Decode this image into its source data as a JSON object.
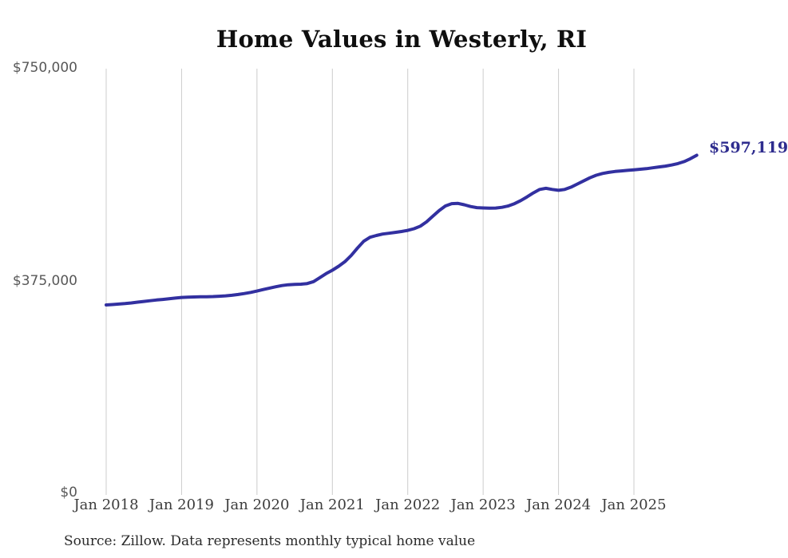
{
  "chart_data": {
    "type": "line",
    "title": "Home Values in Westerly, RI",
    "series_name": "Monthly typical home value",
    "frequency": "monthly",
    "x_start": "Jan 2018",
    "x_end": "Nov 2025",
    "values": [
      334000,
      334700,
      335500,
      336400,
      337500,
      338800,
      340100,
      341400,
      342600,
      343700,
      344800,
      346000,
      347200,
      347700,
      348000,
      348200,
      348400,
      348700,
      349200,
      350000,
      351000,
      352300,
      354000,
      356000,
      358400,
      361000,
      363600,
      366000,
      368000,
      369500,
      370200,
      370500,
      371500,
      375000,
      382000,
      389000,
      395000,
      402000,
      410000,
      421000,
      434000,
      446000,
      453000,
      456000,
      458500,
      460000,
      461500,
      463000,
      465000,
      468000,
      472500,
      480000,
      490000,
      500000,
      508000,
      512000,
      512500,
      510000,
      507000,
      505000,
      504500,
      504000,
      504300,
      505500,
      508000,
      512000,
      517500,
      524000,
      531000,
      537000,
      539000,
      537000,
      535500,
      537000,
      541000,
      546500,
      552000,
      557500,
      562000,
      565000,
      567000,
      568500,
      569500,
      570500,
      571500,
      572500,
      573500,
      575000,
      576500,
      578000,
      580000,
      582500,
      586000,
      591000,
      597119
    ],
    "end_label": "$597,119",
    "x_tick_labels": [
      "Jan 2018",
      "Jan 2019",
      "Jan 2020",
      "Jan 2021",
      "Jan 2022",
      "Jan 2023",
      "Jan 2024",
      "Jan 2025"
    ],
    "y_tick_labels": [
      "$750,000",
      "$375,000",
      "$0"
    ],
    "ylim": [
      0,
      750000
    ],
    "grid": "vertical-only",
    "legend": "none",
    "line_color": "#3230a0",
    "end_label_color": "#2e2c8e",
    "grid_color": "#cccccc"
  },
  "footer": {
    "source": "Source: Zillow. Data represents monthly typical home value"
  }
}
